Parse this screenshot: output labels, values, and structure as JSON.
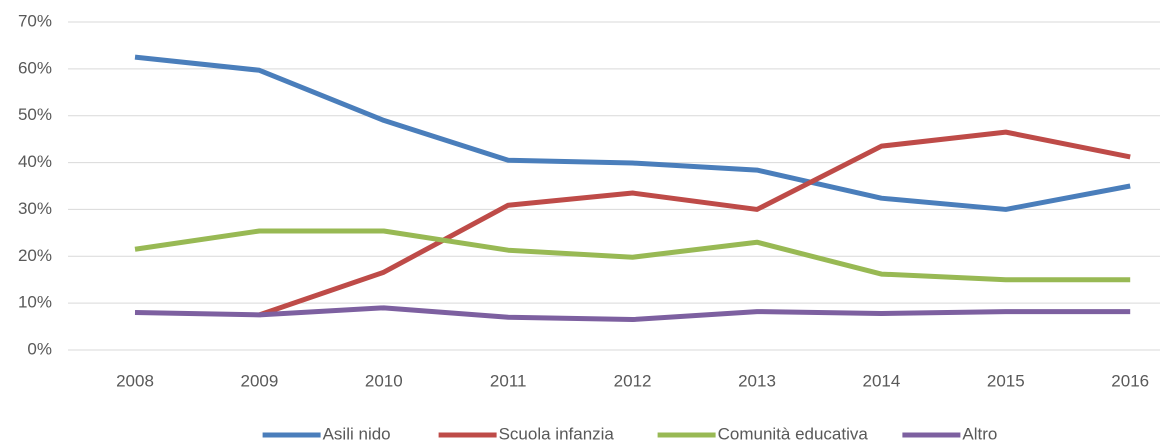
{
  "chart_data": {
    "type": "line",
    "categories": [
      "2008",
      "2009",
      "2010",
      "2011",
      "2012",
      "2013",
      "2014",
      "2015",
      "2016"
    ],
    "series": [
      {
        "name": "Asili nido",
        "color": "#4a7ebb",
        "values": [
          62.5,
          59.7,
          49,
          40.5,
          39.9,
          38.4,
          32.4,
          30,
          35
        ]
      },
      {
        "name": "Scuola infanzia",
        "color": "#be4b48",
        "values": [
          null,
          7.5,
          16.6,
          30.9,
          33.5,
          30,
          43.5,
          46.5,
          41.2
        ]
      },
      {
        "name": "Comunità educativa",
        "color": "#98b954",
        "values": [
          21.5,
          25.4,
          25.4,
          21.3,
          19.8,
          23,
          16.2,
          15,
          15
        ]
      },
      {
        "name": "Altro",
        "color": "#7d60a0",
        "values": [
          8,
          7.5,
          9,
          7,
          6.5,
          8.2,
          7.8,
          8.2,
          8.2
        ]
      }
    ],
    "ylim": [
      0,
      70
    ],
    "yticks": [
      {
        "value": 0,
        "label": "0%"
      },
      {
        "value": 10,
        "label": "10%"
      },
      {
        "value": 20,
        "label": "20%"
      },
      {
        "value": 30,
        "label": "30%"
      },
      {
        "value": 40,
        "label": "40%"
      },
      {
        "value": 50,
        "label": "50%"
      },
      {
        "value": 60,
        "label": "60%"
      },
      {
        "value": 70,
        "label": "70%"
      }
    ],
    "grid": true,
    "legend": "bottom"
  }
}
